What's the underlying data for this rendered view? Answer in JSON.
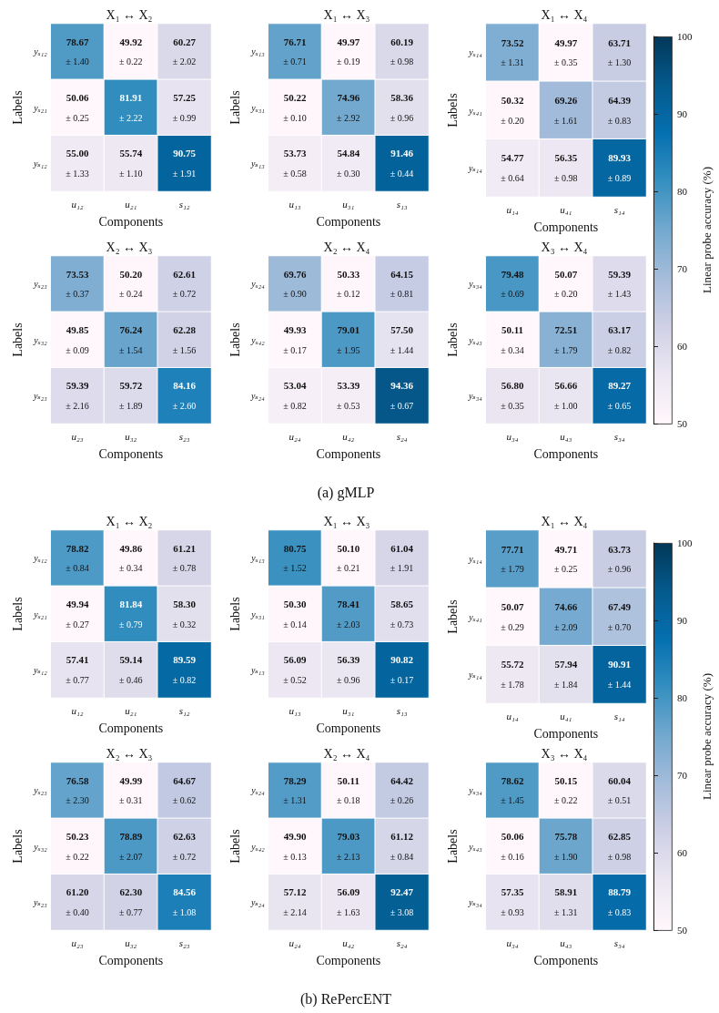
{
  "chart_data": [
    {
      "type": "heatmap",
      "title": "X₁ ↔ X₂",
      "xlabel": "Components",
      "ylabel": "Labels",
      "categories": [
        "u₁₂",
        "u₂₁",
        "s₁₂"
      ],
      "y_categories": [
        "yᵤ₁₂",
        "yᵤ₂₁",
        "yₛ₁₂"
      ],
      "data_labels": true,
      "cells": [
        [
          78.67,
          49.92,
          60.27
        ],
        [
          50.06,
          81.91,
          57.25
        ],
        [
          55.0,
          55.74,
          90.75
        ]
      ],
      "cell_labels": [
        [
          "78.67",
          "49.92",
          "60.27"
        ],
        [
          "50.06",
          "81.91",
          "57.25"
        ],
        [
          "55.00",
          "55.74",
          "90.75"
        ]
      ],
      "annotations": [
        "± 1.40",
        "± 0.22",
        "± 2.02",
        "± 0.25",
        "± 2.22",
        "± 0.99",
        "± 1.33",
        "± 1.10",
        "± 1.91"
      ]
    },
    {
      "type": "heatmap",
      "title": "X₁ ↔ X₃",
      "xlabel": "Components",
      "ylabel": "Labels",
      "categories": [
        "u₁₃",
        "u₃₁",
        "s₁₃"
      ],
      "y_categories": [
        "yᵤ₁₃",
        "yᵤ₃₁",
        "yₛ₁₃"
      ],
      "data_labels": true,
      "cells": [
        [
          76.71,
          49.97,
          60.19
        ],
        [
          50.22,
          74.96,
          58.36
        ],
        [
          53.73,
          54.84,
          91.46
        ]
      ],
      "cell_labels": [
        [
          "76.71",
          "49.97",
          "60.19"
        ],
        [
          "50.22",
          "74.96",
          "58.36"
        ],
        [
          "53.73",
          "54.84",
          "91.46"
        ]
      ],
      "annotations": [
        "± 0.71",
        "± 0.19",
        "± 0.98",
        "± 0.10",
        "± 2.92",
        "± 0.96",
        "± 0.58",
        "± 0.30",
        "± 0.44"
      ]
    },
    {
      "type": "heatmap",
      "title": "X₁ ↔ X₄",
      "xlabel": "Components",
      "ylabel": "Labels",
      "categories": [
        "u₁₄",
        "u₄₁",
        "s₁₄"
      ],
      "y_categories": [
        "yᵤ₁₄",
        "yᵤ₄₁",
        "yₛ₁₄"
      ],
      "data_labels": true,
      "clim": [
        50,
        100
      ],
      "cticks": [
        50,
        60,
        70,
        80,
        90,
        100
      ],
      "clabel": "Linear probe accuracy (%)",
      "cells": [
        [
          73.52,
          49.97,
          63.71
        ],
        [
          50.32,
          69.26,
          64.39
        ],
        [
          54.77,
          56.35,
          89.93
        ]
      ],
      "cell_labels": [
        [
          "73.52",
          "49.97",
          "63.71"
        ],
        [
          "50.32",
          "69.26",
          "64.39"
        ],
        [
          "54.77",
          "56.35",
          "89.93"
        ]
      ],
      "annotations": [
        "± 1.31",
        "± 0.35",
        "± 1.30",
        "± 0.20",
        "± 1.61",
        "± 0.83",
        "± 0.64",
        "± 0.98",
        "± 0.89"
      ]
    },
    {
      "type": "heatmap",
      "title": "X₂ ↔ X₃",
      "xlabel": "Components",
      "ylabel": "Labels",
      "categories": [
        "u₂₃",
        "u₃₂",
        "s₂₃"
      ],
      "y_categories": [
        "yᵤ₂₃",
        "yᵤ₃₂",
        "yₛ₂₃"
      ],
      "data_labels": true,
      "cells": [
        [
          73.53,
          50.2,
          62.61
        ],
        [
          49.85,
          76.24,
          62.28
        ],
        [
          59.39,
          59.72,
          84.16
        ]
      ],
      "cell_labels": [
        [
          "73.53",
          "50.20",
          "62.61"
        ],
        [
          "49.85",
          "76.24",
          "62.28"
        ],
        [
          "59.39",
          "59.72",
          "84.16"
        ]
      ],
      "annotations": [
        "± 0.37",
        "± 0.24",
        "± 0.72",
        "± 0.09",
        "± 1.54",
        "± 1.56",
        "± 2.16",
        "± 1.89",
        "± 2.60"
      ]
    },
    {
      "type": "heatmap",
      "title": "X₂ ↔ X₄",
      "xlabel": "Components",
      "ylabel": "Labels",
      "categories": [
        "u₂₄",
        "u₄₂",
        "s₂₄"
      ],
      "y_categories": [
        "yᵤ₂₄",
        "yᵤ₄₂",
        "yₛ₂₄"
      ],
      "data_labels": true,
      "cells": [
        [
          69.76,
          50.33,
          64.15
        ],
        [
          49.93,
          79.01,
          57.5
        ],
        [
          53.04,
          53.39,
          94.36
        ]
      ],
      "cell_labels": [
        [
          "69.76",
          "50.33",
          "64.15"
        ],
        [
          "49.93",
          "79.01",
          "57.50"
        ],
        [
          "53.04",
          "53.39",
          "94.36"
        ]
      ],
      "annotations": [
        "± 0.90",
        "± 0.12",
        "± 0.81",
        "± 0.17",
        "± 1.95",
        "± 1.44",
        "± 0.82",
        "± 0.53",
        "± 0.67"
      ]
    },
    {
      "type": "heatmap",
      "title": "X₃ ↔ X₄",
      "xlabel": "Components",
      "ylabel": "Labels",
      "categories": [
        "u₃₄",
        "u₄₃",
        "s₃₄"
      ],
      "y_categories": [
        "yᵤ₃₄",
        "yᵤ₄₃",
        "yₛ₃₄"
      ],
      "data_labels": true,
      "cells": [
        [
          79.48,
          50.07,
          59.39
        ],
        [
          50.11,
          72.51,
          63.17
        ],
        [
          56.8,
          56.66,
          89.27
        ]
      ],
      "cell_labels": [
        [
          "79.48",
          "50.07",
          "59.39"
        ],
        [
          "50.11",
          "72.51",
          "63.17"
        ],
        [
          "56.80",
          "56.66",
          "89.27"
        ]
      ],
      "annotations": [
        "(a) gMLP",
        "± 0.69",
        "± 0.20",
        "± 1.43",
        "± 0.34",
        "± 1.79",
        "± 0.82",
        "± 0.35",
        "± 1.00",
        "± 0.65"
      ]
    },
    {
      "type": "heatmap",
      "title": "X₁ ↔ X₂",
      "xlabel": "Components",
      "ylabel": "Labels",
      "categories": [
        "u₁₂",
        "u₂₁",
        "s₁₂"
      ],
      "y_categories": [
        "yᵤ₁₂",
        "yᵤ₂₁",
        "yₛ₁₂"
      ],
      "data_labels": true,
      "cells": [
        [
          78.82,
          49.86,
          61.21
        ],
        [
          49.94,
          81.84,
          58.3
        ],
        [
          57.41,
          59.14,
          89.59
        ]
      ],
      "cell_labels": [
        [
          "78.82",
          "49.86",
          "61.21"
        ],
        [
          "49.94",
          "81.84",
          "58.30"
        ],
        [
          "57.41",
          "59.14",
          "89.59"
        ]
      ],
      "annotations": [
        "± 0.84",
        "± 0.34",
        "± 0.78",
        "± 0.27",
        "± 0.79",
        "± 0.32",
        "± 0.77",
        "± 0.46",
        "± 0.82"
      ]
    },
    {
      "type": "heatmap",
      "title": "X₁ ↔ X₃",
      "xlabel": "Components",
      "ylabel": "Labels",
      "categories": [
        "u₁₃",
        "u₃₁",
        "s₁₃"
      ],
      "y_categories": [
        "yᵤ₁₃",
        "yᵤ₃₁",
        "yₛ₁₃"
      ],
      "data_labels": true,
      "cells": [
        [
          80.75,
          50.1,
          61.04
        ],
        [
          50.3,
          78.41,
          58.65
        ],
        [
          56.09,
          56.39,
          90.82
        ]
      ],
      "cell_labels": [
        [
          "80.75",
          "50.10",
          "61.04"
        ],
        [
          "50.30",
          "78.41",
          "58.65"
        ],
        [
          "56.09",
          "56.39",
          "90.82"
        ]
      ],
      "annotations": [
        "± 1.52",
        "± 0.21",
        "± 1.91",
        "± 0.14",
        "± 2.03",
        "± 0.73",
        "± 0.52",
        "± 0.96",
        "± 0.17"
      ]
    },
    {
      "type": "heatmap",
      "title": "X₁ ↔ X₄",
      "xlabel": "Components",
      "ylabel": "Labels",
      "categories": [
        "u₁₄",
        "u₄₁",
        "s₁₄"
      ],
      "y_categories": [
        "yᵤ₁₄",
        "yᵤ₄₁",
        "yₛ₁₄"
      ],
      "data_labels": true,
      "clim": [
        50,
        100
      ],
      "cticks": [
        50,
        60,
        70,
        80,
        90,
        100
      ],
      "clabel": "Linear probe accuracy (%)",
      "cells": [
        [
          77.71,
          49.71,
          63.73
        ],
        [
          50.07,
          74.66,
          67.49
        ],
        [
          55.72,
          57.94,
          90.91
        ]
      ],
      "cell_labels": [
        [
          "77.71",
          "49.71",
          "63.73"
        ],
        [
          "50.07",
          "74.66",
          "67.49"
        ],
        [
          "55.72",
          "57.94",
          "90.91"
        ]
      ],
      "annotations": [
        "± 1.79",
        "± 0.25",
        "± 0.96",
        "± 0.29",
        "± 2.09",
        "± 0.70",
        "± 1.78",
        "± 1.84",
        "± 1.44"
      ]
    },
    {
      "type": "heatmap",
      "title": "X₂ ↔ X₃",
      "xlabel": "Components",
      "ylabel": "Labels",
      "categories": [
        "u₂₃",
        "u₃₂",
        "s₂₃"
      ],
      "y_categories": [
        "yᵤ₂₃",
        "yᵤ₃₂",
        "yₛ₂₃"
      ],
      "data_labels": true,
      "cells": [
        [
          76.58,
          49.99,
          64.67
        ],
        [
          50.23,
          78.89,
          62.63
        ],
        [
          61.2,
          62.3,
          84.56
        ]
      ],
      "cell_labels": [
        [
          "76.58",
          "49.99",
          "64.67"
        ],
        [
          "50.23",
          "78.89",
          "62.63"
        ],
        [
          "61.20",
          "62.30",
          "84.56"
        ]
      ],
      "annotations": [
        "± 2.30",
        "± 0.31",
        "± 0.62",
        "± 0.22",
        "± 2.07",
        "± 0.72",
        "± 0.40",
        "± 0.77",
        "± 1.08"
      ]
    },
    {
      "type": "heatmap",
      "title": "X₂ ↔ X₄",
      "xlabel": "Components",
      "ylabel": "Labels",
      "categories": [
        "u₂₄",
        "u₄₂",
        "s₂₄"
      ],
      "y_categories": [
        "yᵤ₂₄",
        "yᵤ₄₂",
        "yₛ₂₄"
      ],
      "data_labels": true,
      "cells": [
        [
          78.29,
          50.11,
          64.42
        ],
        [
          49.9,
          79.03,
          61.12
        ],
        [
          57.12,
          56.09,
          92.47
        ]
      ],
      "cell_labels": [
        [
          "78.29",
          "50.11",
          "64.42"
        ],
        [
          "49.90",
          "79.03",
          "61.12"
        ],
        [
          "57.12",
          "56.09",
          "92.47"
        ]
      ],
      "annotations": [
        "± 1.31",
        "± 0.18",
        "± 0.26",
        "± 0.13",
        "± 2.13",
        "± 0.84",
        "± 2.14",
        "± 1.63",
        "± 3.08"
      ]
    },
    {
      "type": "heatmap",
      "title": "X₃ ↔ X₄",
      "xlabel": "Components",
      "ylabel": "Labels",
      "categories": [
        "u₃₄",
        "u₄₃",
        "s₃₄"
      ],
      "y_categories": [
        "yᵤ₃₄",
        "yᵤ₄₃",
        "yₛ₃₄"
      ],
      "data_labels": true,
      "cells": [
        [
          78.62,
          50.15,
          60.04
        ],
        [
          50.06,
          75.78,
          62.85
        ],
        [
          57.35,
          58.91,
          88.79
        ]
      ],
      "cell_labels": [
        [
          "78.62",
          "50.15",
          "60.04"
        ],
        [
          "50.06",
          "75.78",
          "62.85"
        ],
        [
          "57.35",
          "58.91",
          "88.79"
        ]
      ],
      "annotations": [
        "(b) RePercENT",
        "± 1.45",
        "± 0.22",
        "± 0.51",
        "± 0.16",
        "± 1.90",
        "± 0.98",
        "± 0.93",
        "± 1.31",
        "± 0.83"
      ]
    }
  ]
}
